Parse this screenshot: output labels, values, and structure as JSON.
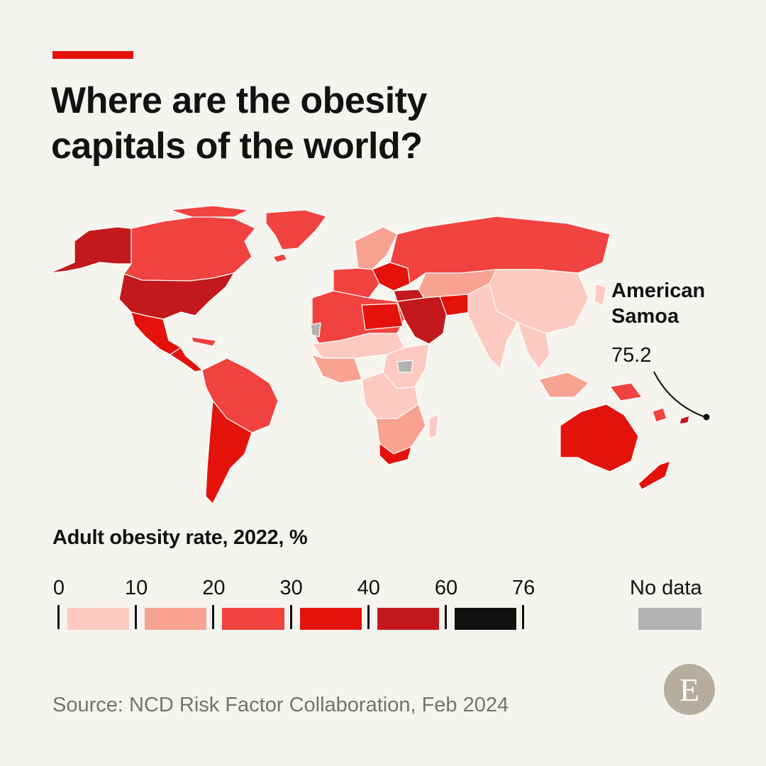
{
  "title": {
    "line1": "Where are the obesity",
    "line2": "capitals of the world?"
  },
  "callout": {
    "name_line1": "American",
    "name_line2": "Samoa",
    "value": "75.2"
  },
  "legend": {
    "title": "Adult obesity rate, 2022, %",
    "ticks": [
      "0",
      "10",
      "20",
      "30",
      "40",
      "60",
      "76"
    ],
    "colors": [
      "#fccac1",
      "#f8a292",
      "#f0423f",
      "#e3120b",
      "#c3191c",
      "#111111"
    ],
    "no_data_label": "No data",
    "no_data_color": "#b3b3b3"
  },
  "source": "Source: NCD Risk Factor Collaboration, Feb 2024",
  "logo": {
    "letter": "E"
  },
  "colors": {
    "accent": "#e3120b",
    "background": "#f5f4ef"
  }
}
